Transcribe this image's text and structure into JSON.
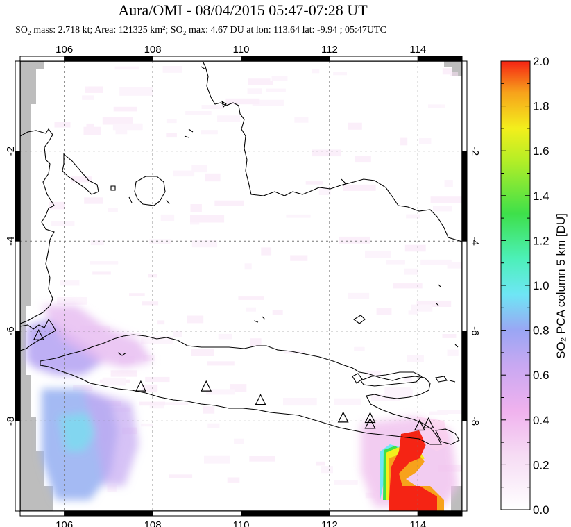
{
  "header": {
    "title": "Aura/OMI - 08/04/2015 05:47-07:28 UT",
    "subtitle": "SO₂ mass: 2.718 kt; Area: 121325 km²; SO₂ max: 4.67 DU at lon: 113.64 lat: -9.94 ; 05:47UTC"
  },
  "chart_data": {
    "type": "heatmap",
    "title": "Aura/OMI - 08/04/2015 05:47-07:28 UT",
    "xlabel": "",
    "ylabel": "",
    "xlim": [
      105.0,
      115.0
    ],
    "ylim": [
      -10.0,
      0.0
    ],
    "x_ticks": [
      "106",
      "108",
      "110",
      "112",
      "114"
    ],
    "y_ticks": [
      "-2",
      "-4",
      "-6",
      "-8"
    ],
    "grid": true,
    "colorbar": {
      "label": "SO₂ PCA column 5 km [DU]",
      "range": [
        0.0,
        2.0
      ],
      "ticks": [
        "0.0",
        "0.2",
        "0.4",
        "0.6",
        "0.8",
        "1.0",
        "1.2",
        "1.4",
        "1.6",
        "1.8",
        "2.0"
      ],
      "colors": [
        "#ffffff",
        "#f2c6ef",
        "#a9a8f3",
        "#6ee6f5",
        "#3ee04a",
        "#f3ef1c",
        "#f7a21b",
        "#f52414"
      ]
    },
    "stats": {
      "so2_mass_kt": 2.718,
      "area_km2": 121325,
      "so2_max_du": 4.67,
      "max_lon": 113.64,
      "max_lat": -9.94,
      "time_utc": "05:47UTC"
    },
    "volcanoes": [
      {
        "lon": 105.42,
        "lat": -6.1
      },
      {
        "lon": 107.73,
        "lat": -7.24
      },
      {
        "lon": 109.21,
        "lat": -7.24
      },
      {
        "lon": 110.44,
        "lat": -7.54
      },
      {
        "lon": 112.31,
        "lat": -7.93
      },
      {
        "lon": 112.92,
        "lat": -8.07
      },
      {
        "lon": 112.92,
        "lat": -7.94
      },
      {
        "lon": 114.04,
        "lat": -8.11
      },
      {
        "lon": 114.24,
        "lat": -8.06
      }
    ],
    "plumes": [
      {
        "lon": 113.7,
        "lat": -9.5,
        "value": 2.0
      },
      {
        "lon": 113.5,
        "lat": -9.0,
        "value": 2.0
      },
      {
        "lon": 113.7,
        "lat": -8.5,
        "value": 1.8
      },
      {
        "lon": 114.0,
        "lat": -9.8,
        "value": 2.0
      },
      {
        "lon": 106.5,
        "lat": -8.5,
        "value": 0.7
      },
      {
        "lon": 106.2,
        "lat": -9.3,
        "value": 0.6
      },
      {
        "lon": 105.5,
        "lat": -6.7,
        "value": 0.6
      }
    ]
  }
}
